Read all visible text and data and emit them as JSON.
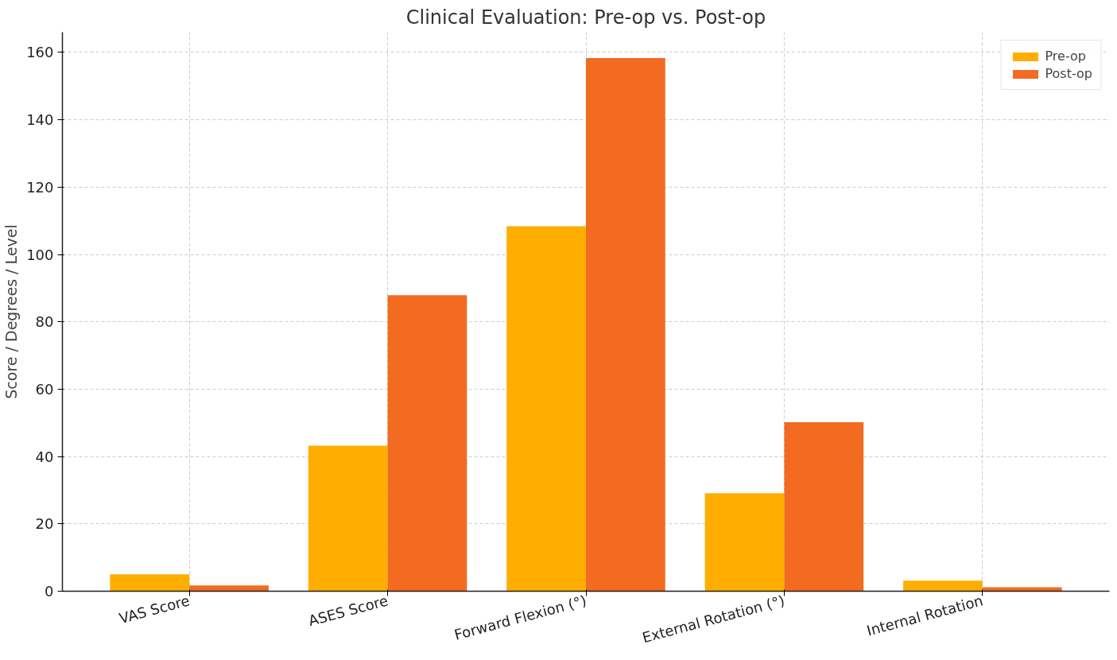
{
  "chart_data": {
    "type": "bar",
    "title": "Clinical Evaluation: Pre-op vs. Post-op",
    "ylabel": "Score / Degrees / Level",
    "categories": [
      "VAS Score",
      "ASES Score",
      "Forward Flexion (°)",
      "External Rotation (°)",
      "Internal Rotation"
    ],
    "series": [
      {
        "name": "Pre-op",
        "color": "#ffae00",
        "values": [
          5.0,
          43.2,
          108.4,
          29.1,
          3.1
        ]
      },
      {
        "name": "Post-op",
        "color": "#f26b21",
        "values": [
          1.7,
          87.9,
          158.3,
          50.2,
          1.2
        ]
      }
    ],
    "ylim": [
      0,
      166
    ],
    "yticks": [
      0,
      20,
      40,
      60,
      80,
      100,
      120,
      140,
      160
    ],
    "grid": true,
    "legend": "top right"
  }
}
